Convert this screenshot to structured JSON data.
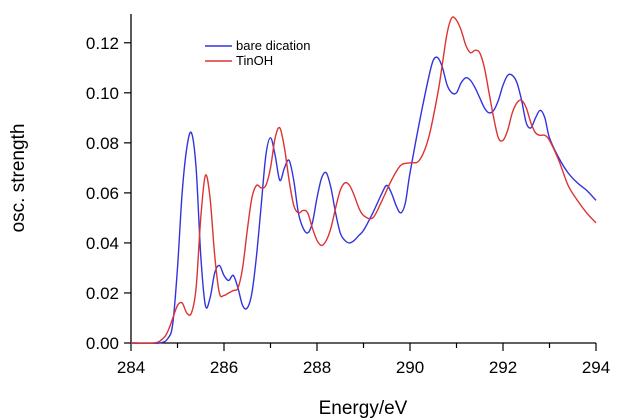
{
  "chart_data": {
    "type": "line",
    "title": "",
    "xlabel": "Energy/eV",
    "ylabel": "osc. strength",
    "xlim": [
      284,
      294
    ],
    "ylim": [
      0,
      0.13
    ],
    "xticks": [
      284,
      286,
      288,
      290,
      292,
      294
    ],
    "xtick_labels": [
      "284",
      "286",
      "288",
      "290",
      "292",
      "294"
    ],
    "yticks": [
      0.0,
      0.02,
      0.04,
      0.06,
      0.08,
      0.1,
      0.12
    ],
    "ytick_labels": [
      "0.00",
      "0.02",
      "0.04",
      "0.06",
      "0.08",
      "0.10",
      "0.12"
    ],
    "grid": false,
    "legend": "top-left",
    "series": [
      {
        "name": "bare dication",
        "color": "#3333dd",
        "x": [
          284.0,
          284.6,
          284.8,
          284.9,
          285.0,
          285.1,
          285.2,
          285.3,
          285.4,
          285.5,
          285.6,
          285.7,
          285.8,
          285.9,
          286.0,
          286.1,
          286.2,
          286.3,
          286.4,
          286.5,
          286.6,
          286.7,
          286.8,
          286.9,
          287.0,
          287.1,
          287.2,
          287.3,
          287.4,
          287.5,
          287.6,
          287.7,
          287.8,
          287.9,
          288.0,
          288.1,
          288.2,
          288.3,
          288.4,
          288.5,
          288.6,
          288.7,
          288.8,
          288.9,
          289.0,
          289.2,
          289.4,
          289.5,
          289.6,
          289.7,
          289.8,
          289.9,
          290.0,
          290.2,
          290.4,
          290.5,
          290.6,
          290.7,
          290.8,
          290.9,
          291.0,
          291.1,
          291.2,
          291.3,
          291.4,
          291.5,
          291.6,
          291.7,
          291.8,
          291.9,
          292.0,
          292.1,
          292.2,
          292.3,
          292.4,
          292.5,
          292.6,
          292.7,
          292.8,
          292.9,
          293.0,
          293.2,
          293.4,
          293.6,
          293.8,
          294.0
        ],
        "y": [
          0.0,
          0.0,
          0.002,
          0.008,
          0.03,
          0.06,
          0.078,
          0.084,
          0.07,
          0.035,
          0.015,
          0.018,
          0.028,
          0.031,
          0.027,
          0.025,
          0.027,
          0.022,
          0.015,
          0.014,
          0.02,
          0.035,
          0.055,
          0.075,
          0.082,
          0.075,
          0.065,
          0.07,
          0.073,
          0.065,
          0.052,
          0.046,
          0.044,
          0.048,
          0.058,
          0.066,
          0.068,
          0.062,
          0.052,
          0.044,
          0.041,
          0.04,
          0.041,
          0.043,
          0.045,
          0.052,
          0.06,
          0.063,
          0.06,
          0.055,
          0.052,
          0.056,
          0.068,
          0.088,
          0.106,
          0.113,
          0.114,
          0.11,
          0.103,
          0.1,
          0.1,
          0.104,
          0.106,
          0.105,
          0.102,
          0.098,
          0.094,
          0.092,
          0.093,
          0.097,
          0.103,
          0.107,
          0.107,
          0.104,
          0.097,
          0.088,
          0.086,
          0.09,
          0.093,
          0.09,
          0.082,
          0.074,
          0.068,
          0.064,
          0.061,
          0.057
        ]
      },
      {
        "name": "TinOH",
        "color": "#dd3333",
        "x": [
          284.0,
          284.5,
          284.7,
          284.8,
          284.9,
          285.0,
          285.1,
          285.2,
          285.3,
          285.4,
          285.5,
          285.6,
          285.7,
          285.8,
          285.9,
          286.0,
          286.1,
          286.2,
          286.3,
          286.4,
          286.5,
          286.6,
          286.7,
          286.8,
          286.9,
          287.0,
          287.1,
          287.2,
          287.3,
          287.4,
          287.5,
          287.6,
          287.7,
          287.8,
          287.9,
          288.0,
          288.1,
          288.2,
          288.3,
          288.4,
          288.5,
          288.6,
          288.7,
          288.8,
          288.9,
          289.0,
          289.2,
          289.4,
          289.6,
          289.8,
          290.0,
          290.2,
          290.4,
          290.6,
          290.7,
          290.8,
          290.9,
          291.0,
          291.1,
          291.2,
          291.3,
          291.4,
          291.5,
          291.6,
          291.7,
          291.8,
          291.9,
          292.0,
          292.1,
          292.2,
          292.3,
          292.4,
          292.5,
          292.6,
          292.7,
          292.8,
          292.9,
          293.0,
          293.2,
          293.4,
          293.6,
          293.8,
          294.0
        ],
        "y": [
          0.0,
          0.0,
          0.002,
          0.005,
          0.01,
          0.015,
          0.016,
          0.012,
          0.012,
          0.022,
          0.05,
          0.067,
          0.058,
          0.035,
          0.02,
          0.019,
          0.02,
          0.021,
          0.022,
          0.03,
          0.045,
          0.058,
          0.063,
          0.062,
          0.063,
          0.07,
          0.082,
          0.086,
          0.078,
          0.065,
          0.055,
          0.052,
          0.053,
          0.052,
          0.046,
          0.041,
          0.039,
          0.041,
          0.046,
          0.054,
          0.061,
          0.064,
          0.063,
          0.059,
          0.054,
          0.051,
          0.05,
          0.057,
          0.065,
          0.071,
          0.072,
          0.073,
          0.082,
          0.1,
          0.112,
          0.124,
          0.13,
          0.129,
          0.125,
          0.119,
          0.116,
          0.117,
          0.116,
          0.11,
          0.1,
          0.09,
          0.082,
          0.081,
          0.085,
          0.092,
          0.096,
          0.097,
          0.094,
          0.088,
          0.084,
          0.083,
          0.083,
          0.081,
          0.073,
          0.063,
          0.057,
          0.052,
          0.048
        ]
      }
    ]
  }
}
